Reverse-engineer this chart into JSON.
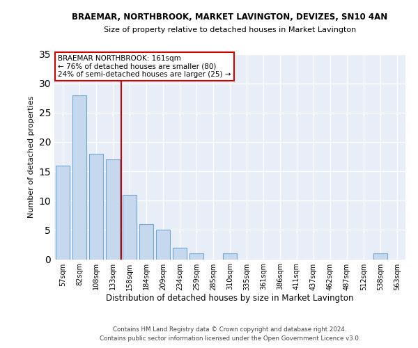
{
  "title1": "BRAEMAR, NORTHBROOK, MARKET LAVINGTON, DEVIZES, SN10 4AN",
  "title2": "Size of property relative to detached houses in Market Lavington",
  "xlabel": "Distribution of detached houses by size in Market Lavington",
  "ylabel": "Number of detached properties",
  "bins": [
    "57sqm",
    "82sqm",
    "108sqm",
    "133sqm",
    "158sqm",
    "184sqm",
    "209sqm",
    "234sqm",
    "259sqm",
    "285sqm",
    "310sqm",
    "335sqm",
    "361sqm",
    "386sqm",
    "411sqm",
    "437sqm",
    "462sqm",
    "487sqm",
    "512sqm",
    "538sqm",
    "563sqm"
  ],
  "values": [
    16,
    28,
    18,
    17,
    11,
    6,
    5,
    2,
    1,
    0,
    1,
    0,
    0,
    0,
    0,
    0,
    0,
    0,
    0,
    1,
    0
  ],
  "bar_color": "#c5d8ed",
  "bar_edge_color": "#6fa8d0",
  "bar_linewidth": 0.8,
  "vline_color": "#cc0000",
  "annotation_title": "BRAEMAR NORTHBROOK: 161sqm",
  "annotation_line1": "← 76% of detached houses are smaller (80)",
  "annotation_line2": "24% of semi-detached houses are larger (25) →",
  "annotation_box_color": "#ffffff",
  "annotation_box_edge": "#cc0000",
  "ylim": [
    0,
    35
  ],
  "yticks": [
    0,
    5,
    10,
    15,
    20,
    25,
    30,
    35
  ],
  "bg_color": "#e8eef7",
  "grid_color": "#ffffff",
  "footer1": "Contains HM Land Registry data © Crown copyright and database right 2024.",
  "footer2": "Contains public sector information licensed under the Open Government Licence v3.0."
}
